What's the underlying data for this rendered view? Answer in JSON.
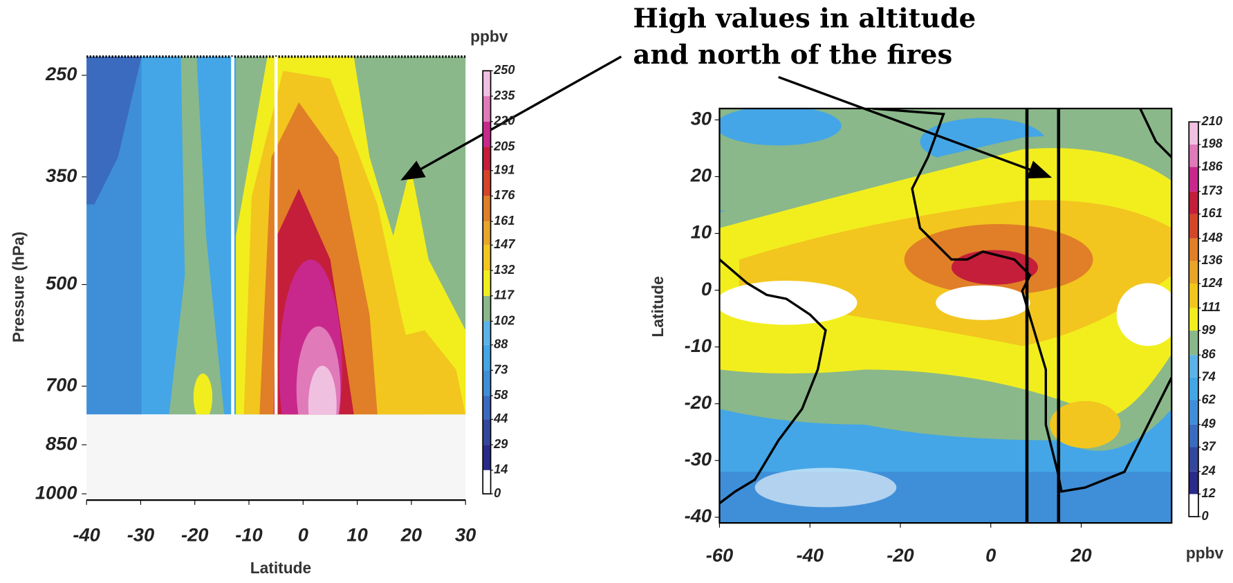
{
  "annotation": [
    "High values in altitude",
    "and north of the fires"
  ],
  "chart_data": [
    {
      "type": "heatmap",
      "y_label": "Pressure (hPa)",
      "x_label": "Latitude",
      "xlim": [
        -40,
        30
      ],
      "xticks": [
        -40,
        -30,
        -20,
        -10,
        0,
        10,
        20,
        30
      ],
      "ylim": [
        1000,
        235
      ],
      "yscale": "log",
      "yticks": [
        250,
        350,
        500,
        700,
        850,
        1000
      ],
      "section_lines": [
        -13,
        -5
      ],
      "section_line_color": "#ffffff",
      "colorbar": {
        "label": "ppbv",
        "ticks": [
          0,
          14,
          29,
          44,
          58,
          73,
          88,
          102,
          117,
          132,
          147,
          161,
          176,
          191,
          205,
          220,
          235,
          250
        ],
        "colors": [
          "#ffffff",
          "#2a2a8a",
          "#34479e",
          "#3a6bbf",
          "#3f8fd8",
          "#44a6e6",
          "#5cb3e8",
          "#8ab88a",
          "#f2ee1e",
          "#f2c61e",
          "#e8a52a",
          "#e07f28",
          "#d4452a",
          "#c41e3a",
          "#c8288c",
          "#e07ab8",
          "#f0c0e0"
        ]
      }
    },
    {
      "type": "heatmap",
      "y_label": "Latitude",
      "xlim": [
        -60,
        40
      ],
      "xticks": [
        -60,
        -40,
        -20,
        0,
        20
      ],
      "ylim": [
        -41,
        32
      ],
      "yscale": "linear",
      "yticks": [
        -40,
        -30,
        -20,
        -10,
        0,
        10,
        20,
        30
      ],
      "section_lines": [
        8,
        15
      ],
      "section_line_color": "#000000",
      "colorbar": {
        "label": "ppbv",
        "ticks": [
          0,
          12,
          24,
          37,
          49,
          62,
          74,
          86,
          99,
          111,
          124,
          136,
          148,
          161,
          173,
          186,
          198,
          210
        ],
        "colors": [
          "#ffffff",
          "#2a2a8a",
          "#34479e",
          "#3a6bbf",
          "#3f8fd8",
          "#44a6e6",
          "#5cb3e8",
          "#8ab88a",
          "#f2ee1e",
          "#f2c61e",
          "#e8a52a",
          "#e07f28",
          "#d4452a",
          "#c41e3a",
          "#c8288c",
          "#e07ab8",
          "#f0c0e0"
        ]
      }
    }
  ]
}
